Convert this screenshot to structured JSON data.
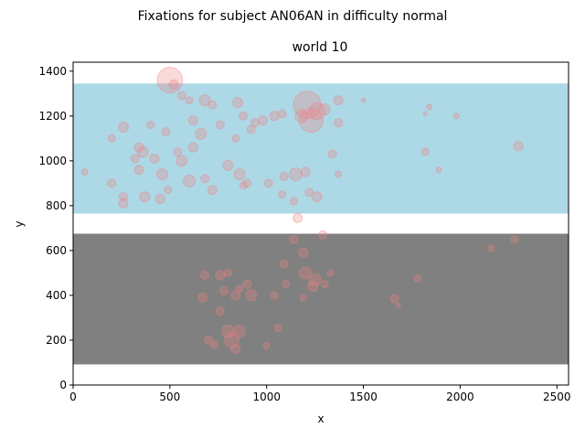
{
  "chart_data": {
    "type": "scatter",
    "suptitle": "Fixations for subject AN06AN in difficulty normal",
    "title": "world 10",
    "xlabel": "x",
    "ylabel": "y",
    "xlim": [
      0,
      2560
    ],
    "ylim": [
      0,
      1440
    ],
    "xticks": [
      0,
      500,
      1000,
      1500,
      2000,
      2500
    ],
    "yticks": [
      0,
      200,
      400,
      600,
      800,
      1000,
      1200,
      1400
    ],
    "grid": false,
    "regions": [
      {
        "name": "upper-band",
        "color": "#add8e6",
        "y0": 765,
        "y1": 1345
      },
      {
        "name": "lower-band",
        "color": "#808080",
        "y0": 92,
        "y1": 675
      }
    ],
    "point_color": "#f08080",
    "point_alpha": 0.3,
    "points": [
      {
        "x": 500,
        "y": 1360,
        "s": 28
      },
      {
        "x": 1210,
        "y": 1250,
        "s": 30
      },
      {
        "x": 1230,
        "y": 1180,
        "s": 26
      },
      {
        "x": 1260,
        "y": 1220,
        "s": 18
      },
      {
        "x": 1180,
        "y": 1200,
        "s": 14
      },
      {
        "x": 1300,
        "y": 1230,
        "s": 12
      },
      {
        "x": 520,
        "y": 1340,
        "s": 10
      },
      {
        "x": 560,
        "y": 1290,
        "s": 9
      },
      {
        "x": 600,
        "y": 1270,
        "s": 8
      },
      {
        "x": 680,
        "y": 1270,
        "s": 12
      },
      {
        "x": 720,
        "y": 1250,
        "s": 9
      },
      {
        "x": 850,
        "y": 1260,
        "s": 11
      },
      {
        "x": 880,
        "y": 1200,
        "s": 9
      },
      {
        "x": 940,
        "y": 1170,
        "s": 9
      },
      {
        "x": 980,
        "y": 1180,
        "s": 10
      },
      {
        "x": 1040,
        "y": 1200,
        "s": 10
      },
      {
        "x": 1080,
        "y": 1210,
        "s": 9
      },
      {
        "x": 1370,
        "y": 1270,
        "s": 10
      },
      {
        "x": 1370,
        "y": 1170,
        "s": 9
      },
      {
        "x": 1500,
        "y": 1270,
        "s": 5
      },
      {
        "x": 1840,
        "y": 1240,
        "s": 6
      },
      {
        "x": 1820,
        "y": 1210,
        "s": 4
      },
      {
        "x": 1980,
        "y": 1200,
        "s": 6
      },
      {
        "x": 260,
        "y": 1150,
        "s": 11
      },
      {
        "x": 400,
        "y": 1160,
        "s": 8
      },
      {
        "x": 480,
        "y": 1130,
        "s": 9
      },
      {
        "x": 200,
        "y": 1100,
        "s": 8
      },
      {
        "x": 620,
        "y": 1180,
        "s": 10
      },
      {
        "x": 660,
        "y": 1120,
        "s": 12
      },
      {
        "x": 760,
        "y": 1160,
        "s": 9
      },
      {
        "x": 840,
        "y": 1100,
        "s": 8
      },
      {
        "x": 920,
        "y": 1140,
        "s": 9
      },
      {
        "x": 340,
        "y": 1060,
        "s": 10
      },
      {
        "x": 360,
        "y": 1040,
        "s": 12
      },
      {
        "x": 320,
        "y": 1010,
        "s": 9
      },
      {
        "x": 420,
        "y": 1010,
        "s": 10
      },
      {
        "x": 560,
        "y": 1000,
        "s": 12
      },
      {
        "x": 620,
        "y": 1060,
        "s": 10
      },
      {
        "x": 540,
        "y": 1040,
        "s": 9
      },
      {
        "x": 60,
        "y": 950,
        "s": 7
      },
      {
        "x": 200,
        "y": 900,
        "s": 9
      },
      {
        "x": 340,
        "y": 960,
        "s": 10
      },
      {
        "x": 460,
        "y": 940,
        "s": 12
      },
      {
        "x": 600,
        "y": 910,
        "s": 13
      },
      {
        "x": 680,
        "y": 920,
        "s": 9
      },
      {
        "x": 800,
        "y": 980,
        "s": 11
      },
      {
        "x": 860,
        "y": 940,
        "s": 12
      },
      {
        "x": 900,
        "y": 900,
        "s": 9
      },
      {
        "x": 1010,
        "y": 900,
        "s": 9
      },
      {
        "x": 1090,
        "y": 930,
        "s": 9
      },
      {
        "x": 1150,
        "y": 940,
        "s": 14
      },
      {
        "x": 1200,
        "y": 950,
        "s": 10
      },
      {
        "x": 1340,
        "y": 1030,
        "s": 9
      },
      {
        "x": 1370,
        "y": 940,
        "s": 7
      },
      {
        "x": 1820,
        "y": 1040,
        "s": 8
      },
      {
        "x": 1890,
        "y": 960,
        "s": 6
      },
      {
        "x": 2300,
        "y": 1065,
        "s": 10
      },
      {
        "x": 260,
        "y": 840,
        "s": 9
      },
      {
        "x": 260,
        "y": 810,
        "s": 10
      },
      {
        "x": 370,
        "y": 840,
        "s": 11
      },
      {
        "x": 450,
        "y": 830,
        "s": 10
      },
      {
        "x": 490,
        "y": 870,
        "s": 8
      },
      {
        "x": 720,
        "y": 870,
        "s": 10
      },
      {
        "x": 880,
        "y": 890,
        "s": 8
      },
      {
        "x": 1080,
        "y": 850,
        "s": 8
      },
      {
        "x": 1140,
        "y": 820,
        "s": 8
      },
      {
        "x": 1220,
        "y": 860,
        "s": 9
      },
      {
        "x": 1260,
        "y": 840,
        "s": 11
      },
      {
        "x": 1160,
        "y": 745,
        "s": 10
      },
      {
        "x": 1290,
        "y": 670,
        "s": 9
      },
      {
        "x": 1140,
        "y": 650,
        "s": 9
      },
      {
        "x": 1190,
        "y": 590,
        "s": 10
      },
      {
        "x": 2160,
        "y": 610,
        "s": 7
      },
      {
        "x": 2280,
        "y": 650,
        "s": 8
      },
      {
        "x": 1090,
        "y": 540,
        "s": 9
      },
      {
        "x": 1200,
        "y": 500,
        "s": 13
      },
      {
        "x": 1250,
        "y": 470,
        "s": 13
      },
      {
        "x": 1240,
        "y": 440,
        "s": 11
      },
      {
        "x": 1300,
        "y": 450,
        "s": 8
      },
      {
        "x": 1330,
        "y": 500,
        "s": 7
      },
      {
        "x": 1190,
        "y": 390,
        "s": 7
      },
      {
        "x": 1100,
        "y": 450,
        "s": 8
      },
      {
        "x": 1040,
        "y": 400,
        "s": 8
      },
      {
        "x": 680,
        "y": 490,
        "s": 9
      },
      {
        "x": 760,
        "y": 490,
        "s": 10
      },
      {
        "x": 800,
        "y": 500,
        "s": 8
      },
      {
        "x": 900,
        "y": 450,
        "s": 9
      },
      {
        "x": 860,
        "y": 430,
        "s": 8
      },
      {
        "x": 780,
        "y": 420,
        "s": 9
      },
      {
        "x": 920,
        "y": 400,
        "s": 12
      },
      {
        "x": 840,
        "y": 400,
        "s": 10
      },
      {
        "x": 670,
        "y": 390,
        "s": 10
      },
      {
        "x": 760,
        "y": 330,
        "s": 9
      },
      {
        "x": 1780,
        "y": 475,
        "s": 8
      },
      {
        "x": 1660,
        "y": 385,
        "s": 9
      },
      {
        "x": 1680,
        "y": 355,
        "s": 5
      },
      {
        "x": 1060,
        "y": 255,
        "s": 8
      },
      {
        "x": 800,
        "y": 240,
        "s": 14
      },
      {
        "x": 860,
        "y": 240,
        "s": 13
      },
      {
        "x": 820,
        "y": 200,
        "s": 16
      },
      {
        "x": 700,
        "y": 200,
        "s": 9
      },
      {
        "x": 730,
        "y": 180,
        "s": 8
      },
      {
        "x": 1000,
        "y": 175,
        "s": 7
      },
      {
        "x": 840,
        "y": 160,
        "s": 10
      }
    ]
  }
}
